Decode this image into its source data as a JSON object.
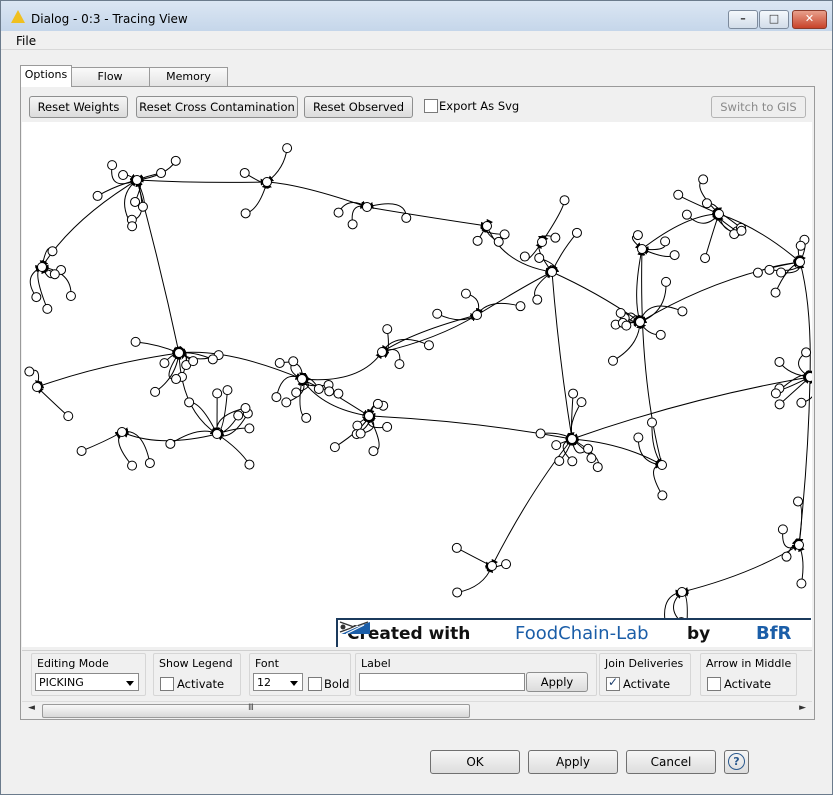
{
  "window": {
    "title": "Dialog - 0:3 - Tracing View",
    "minimize_glyph": "–",
    "maximize_glyph": "□",
    "close_glyph": "✕"
  },
  "menu": {
    "file": "File"
  },
  "tabs": [
    {
      "label": "Options",
      "active": true
    },
    {
      "label": "Flow Variables",
      "active": false
    },
    {
      "label": "Memory Policy",
      "active": false
    }
  ],
  "toolbar": {
    "reset_weights": "Reset Weights",
    "reset_cross_contamination": "Reset Cross Contamination",
    "reset_observed": "Reset Observed",
    "export_svg_label": "Export As Svg",
    "export_svg_checked": false,
    "switch_to_gis": "Switch to GIS"
  },
  "graph": {
    "banner_created_with": "Created with",
    "banner_app": "FoodChain-Lab",
    "banner_by": "by",
    "banner_org": "BfR"
  },
  "controls": {
    "editing_mode": {
      "title": "Editing Mode",
      "value": "PICKING"
    },
    "show_legend": {
      "title": "Show Legend",
      "checkbox_label": "Activate",
      "checked": false
    },
    "font": {
      "title": "Font",
      "size": "12",
      "bold_label": "Bold",
      "bold_checked": false
    },
    "label": {
      "title": "Label",
      "value": "",
      "apply": "Apply"
    },
    "join_deliveries": {
      "title": "Join Deliveries",
      "checkbox_label": "Activate",
      "checked": true
    },
    "arrow_in_middle": {
      "title": "Arrow in Middle",
      "checkbox_label": "Activate",
      "checked": false
    }
  },
  "scrollbar": {
    "left_arrow": "◄",
    "right_arrow": "►",
    "grip": "III"
  },
  "footer": {
    "ok": "OK",
    "apply": "Apply",
    "cancel": "Cancel",
    "help": "?"
  },
  "colors": {
    "accent": "#1b5ea8",
    "node_fill": "#ffffff",
    "edge": "#000000"
  }
}
